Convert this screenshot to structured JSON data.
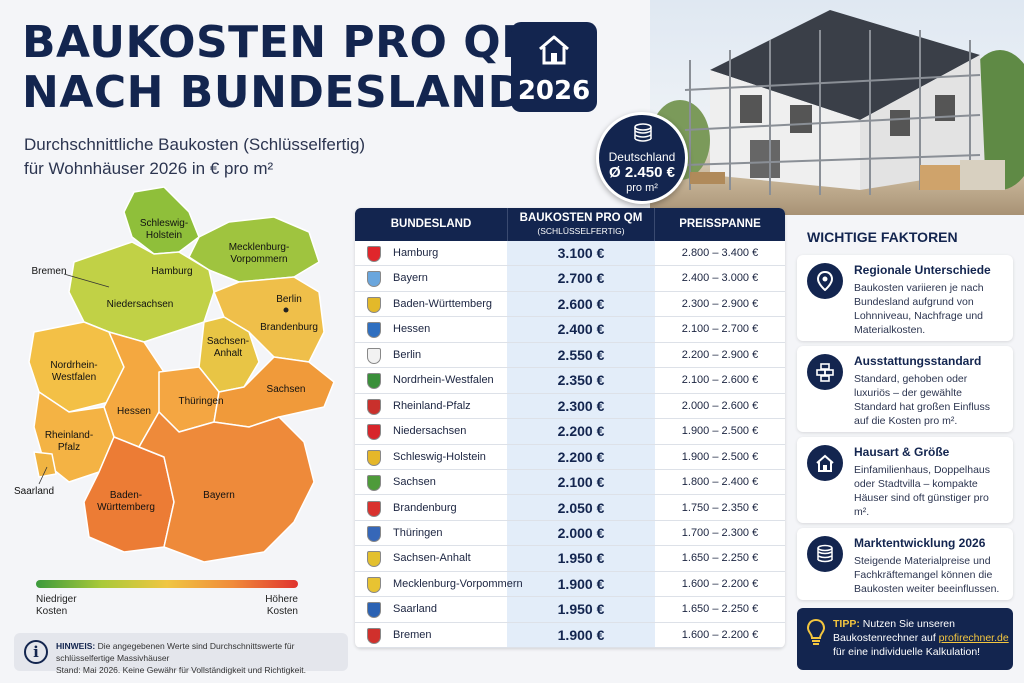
{
  "header": {
    "title_line1": "BAUKOSTEN PRO QM",
    "title_line2": "NACH BUNDESLAND",
    "subtitle_line1": "Durchschnittliche Baukosten (Schlüsselfertig)",
    "subtitle_line2": "für Wohnhäuser 2026 in € pro m²",
    "year": "2026"
  },
  "average": {
    "label": "Deutschland",
    "value": "Ø 2.450 €",
    "unit": "pro m²"
  },
  "map": {
    "labels": [
      "Schleswig-",
      "Holstein",
      "Mecklenburg-",
      "Vorpommern",
      "Bremen",
      "Hamburg",
      "Niedersachsen",
      "Berlin",
      "Brandenburg",
      "Sachsen-",
      "Anhalt",
      "Nordrhein-",
      "Westfalen",
      "Hessen",
      "Thüringen",
      "Sachsen",
      "Rheinland-",
      "Pfalz",
      "Saarland",
      "Baden-",
      "Württemberg",
      "Bayern"
    ]
  },
  "legend": {
    "low_line1": "Niedriger",
    "low_line2": "Kosten",
    "high_line1": "Höhere",
    "high_line2": "Kosten"
  },
  "note": {
    "label": "HINWEIS:",
    "text": "Die angegebenen Werte sind Durchschnittswerte für schlüsselfertige Massivhäuser",
    "text2": "Stand: Mai 2026. Keine Gewähr für Vollständigkeit und Richtigkeit."
  },
  "table": {
    "col1": "BUNDESLAND",
    "col2": "BAUKOSTEN PRO QM",
    "col2_sub": "(SCHLÜSSELFERTIG)",
    "col3": "PREISSPANNE",
    "rows": [
      {
        "name": "Hamburg",
        "cost": "3.100 €",
        "range": "2.800 – 3.400 €",
        "crest": "#e0262b"
      },
      {
        "name": "Bayern",
        "cost": "2.700 €",
        "range": "2.400 – 3.000 €",
        "crest": "#6aa6dd"
      },
      {
        "name": "Baden-Württemberg",
        "cost": "2.600 €",
        "range": "2.300 – 2.900 €",
        "crest": "#e3b92a"
      },
      {
        "name": "Hessen",
        "cost": "2.400 €",
        "range": "2.100 – 2.700 €",
        "crest": "#2f6fc0"
      },
      {
        "name": "Berlin",
        "cost": "2.550 €",
        "range": "2.200 – 2.900 €",
        "crest": "#f2f2f2"
      },
      {
        "name": "Nordrhein-Westfalen",
        "cost": "2.350 €",
        "range": "2.100 – 2.600 €",
        "crest": "#3a8f3a"
      },
      {
        "name": "Rheinland-Pfalz",
        "cost": "2.300 €",
        "range": "2.000 – 2.600 €",
        "crest": "#c9302c"
      },
      {
        "name": "Niedersachsen",
        "cost": "2.200 €",
        "range": "1.900 – 2.500 €",
        "crest": "#d7262b"
      },
      {
        "name": "Schleswig-Holstein",
        "cost": "2.200 €",
        "range": "1.900 – 2.500 €",
        "crest": "#e5b72a"
      },
      {
        "name": "Sachsen",
        "cost": "2.100 €",
        "range": "1.800 – 2.400 €",
        "crest": "#4e9b3a"
      },
      {
        "name": "Brandenburg",
        "cost": "2.050 €",
        "range": "1.750 – 2.350 €",
        "crest": "#d9322e"
      },
      {
        "name": "Thüringen",
        "cost": "2.000 €",
        "range": "1.700 – 2.300 €",
        "crest": "#3667b8"
      },
      {
        "name": "Sachsen-Anhalt",
        "cost": "1.950 €",
        "range": "1.650 – 2.250 €",
        "crest": "#e3c02e"
      },
      {
        "name": "Mecklenburg-Vorpommern",
        "cost": "1.900 €",
        "range": "1.600 – 2.200 €",
        "crest": "#e8c332"
      },
      {
        "name": "Saarland",
        "cost": "1.950 €",
        "range": "1.650 – 2.250 €",
        "crest": "#2b62b3"
      },
      {
        "name": "Bremen",
        "cost": "1.900 €",
        "range": "1.600 – 2.200 €",
        "crest": "#d0302c"
      }
    ]
  },
  "factors": {
    "heading": "WICHTIGE FAKTOREN",
    "items": [
      {
        "title": "Regionale Unterschiede",
        "text": "Baukosten variieren je nach Bundesland aufgrund von Lohnniveau, Nachfrage und Materialkosten.",
        "icon": "location-pin-icon"
      },
      {
        "title": "Ausstattungsstandard",
        "text": "Standard, gehoben oder luxuriös – der gewählte Standard hat großen Einfluss auf die Kosten pro m².",
        "icon": "bricks-icon"
      },
      {
        "title": "Hausart & Größe",
        "text": "Einfamilienhaus, Doppelhaus oder Stadtvilla – kompakte Häuser sind oft günstiger pro m².",
        "icon": "house-icon"
      },
      {
        "title": "Marktentwicklung 2026",
        "text": "Steigende Materialpreise und Fachkräftemangel können die Baukosten weiter beeinflussen.",
        "icon": "coins-icon"
      }
    ]
  },
  "tip": {
    "label": "TIPP:",
    "text1": "Nutzen Sie unseren Baukostenrechner auf",
    "link": "profirechner.de",
    "text2": "für eine individuelle Kalkulation!"
  },
  "colors": {
    "navy": "#13254f",
    "accent_yellow": "#f3c63f",
    "table_highlight": "#e3edf9"
  }
}
